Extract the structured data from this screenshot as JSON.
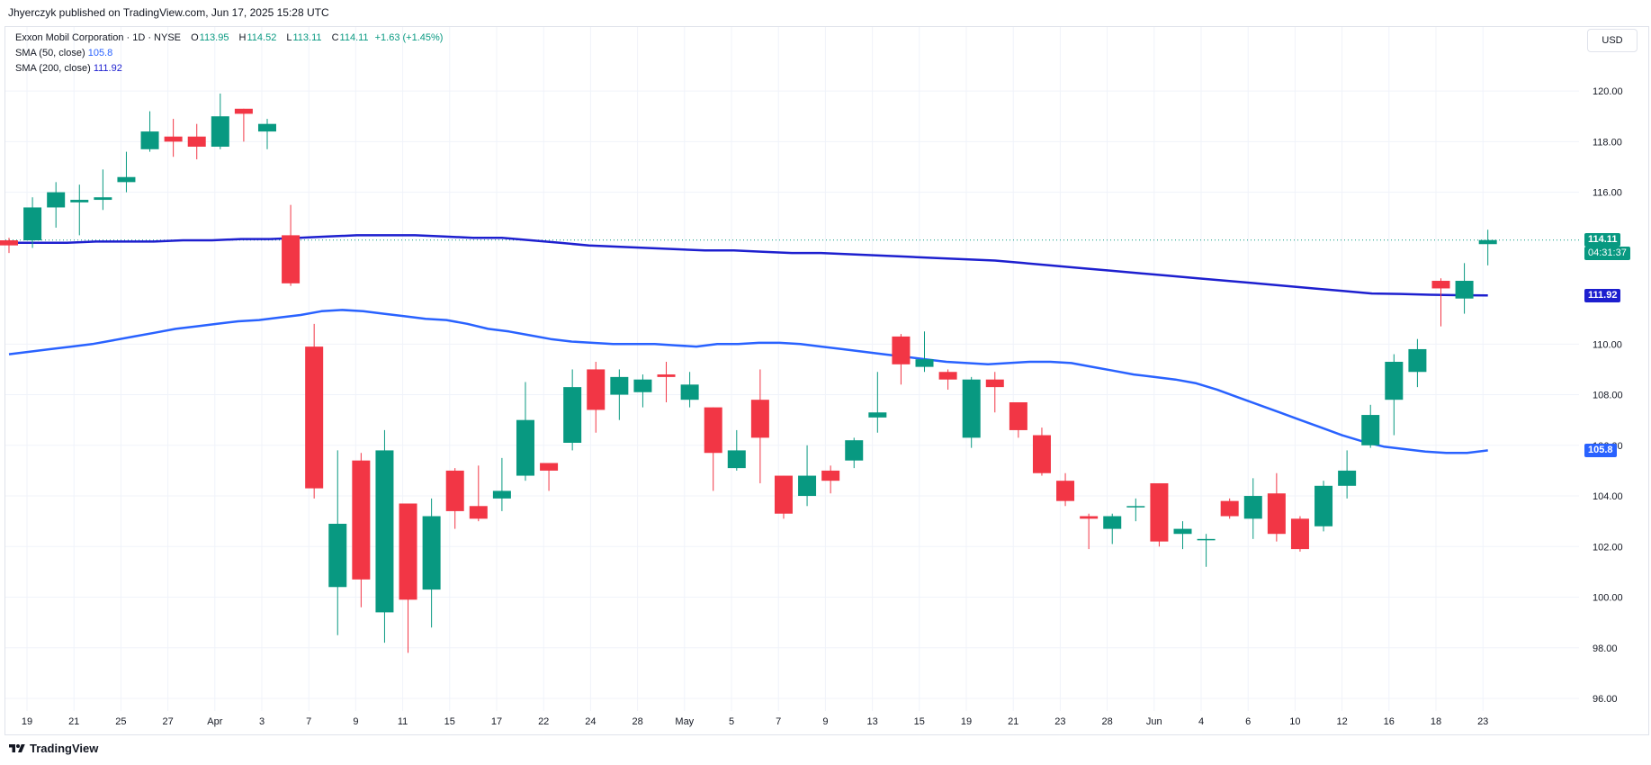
{
  "header": {
    "published": "Jhyerczyk published on TradingView.com, Jun 17, 2025 15:28 UTC"
  },
  "legend": {
    "symbol": "Exxon Mobil Corporation · 1D · NYSE",
    "open_key": "O",
    "open": "113.95",
    "high_key": "H",
    "high": "114.52",
    "low_key": "L",
    "low": "113.11",
    "close_key": "C",
    "close": "114.11",
    "change": "+1.63 (+1.45%)",
    "sma50_label": "SMA (50, close)",
    "sma50_value": "105.8",
    "sma200_label": "SMA (200, close)",
    "sma200_value": "111.92"
  },
  "currency": "USD",
  "price_labels": {
    "last_price": "114.11",
    "countdown": "04:31:37",
    "sma200": "111.92",
    "sma50": "105.8"
  },
  "footer": {
    "brand": "TradingView"
  },
  "colors": {
    "up": "#089981",
    "down": "#f23645",
    "sma50": "#2962ff",
    "sma200": "#1d1fcf",
    "grid": "#f0f3fa",
    "text": "#131722"
  },
  "chart_data": {
    "type": "candlestick",
    "title": "Exxon Mobil Corporation · 1D · NYSE",
    "ylim": [
      95.5,
      122.5
    ],
    "y_ticks": [
      "96.00",
      "98.00",
      "100.00",
      "102.00",
      "104.00",
      "106.00",
      "108.00",
      "110.00",
      "116.00",
      "118.00",
      "120.00"
    ],
    "x_ticks": [
      "19",
      "21",
      "25",
      "27",
      "Apr",
      "3",
      "7",
      "9",
      "11",
      "15",
      "17",
      "22",
      "24",
      "28",
      "May",
      "5",
      "7",
      "9",
      "13",
      "15",
      "19",
      "21",
      "23",
      "28",
      "Jun",
      "4",
      "6",
      "10",
      "12",
      "16",
      "18",
      "23"
    ],
    "grid": true,
    "candles": [
      {
        "date": "Mar 18",
        "o": 114.1,
        "h": 114.2,
        "l": 113.6,
        "c": 113.9
      },
      {
        "date": "Mar 19",
        "o": 114.1,
        "h": 115.8,
        "l": 113.8,
        "c": 115.4
      },
      {
        "date": "Mar 20",
        "o": 115.4,
        "h": 116.4,
        "l": 114.6,
        "c": 116.0
      },
      {
        "date": "Mar 21",
        "o": 115.6,
        "h": 116.3,
        "l": 114.3,
        "c": 115.7
      },
      {
        "date": "Mar 24",
        "o": 115.7,
        "h": 116.9,
        "l": 115.3,
        "c": 115.8
      },
      {
        "date": "Mar 25",
        "o": 116.4,
        "h": 117.6,
        "l": 116.0,
        "c": 116.6
      },
      {
        "date": "Mar 26",
        "o": 117.7,
        "h": 119.2,
        "l": 117.6,
        "c": 118.4
      },
      {
        "date": "Mar 27",
        "o": 118.2,
        "h": 118.9,
        "l": 117.4,
        "c": 118.0
      },
      {
        "date": "Mar 28",
        "o": 118.2,
        "h": 118.7,
        "l": 117.3,
        "c": 117.8
      },
      {
        "date": "Mar 31",
        "o": 117.8,
        "h": 119.9,
        "l": 117.7,
        "c": 119.0
      },
      {
        "date": "Apr 1",
        "o": 119.3,
        "h": 119.3,
        "l": 118.0,
        "c": 119.1
      },
      {
        "date": "Apr 2",
        "o": 118.4,
        "h": 118.9,
        "l": 117.7,
        "c": 118.7
      },
      {
        "date": "Apr 3",
        "o": 114.3,
        "h": 115.5,
        "l": 112.3,
        "c": 112.4
      },
      {
        "date": "Apr 4",
        "o": 109.9,
        "h": 110.8,
        "l": 103.9,
        "c": 104.3
      },
      {
        "date": "Apr 7",
        "o": 100.4,
        "h": 105.8,
        "l": 98.5,
        "c": 102.9
      },
      {
        "date": "Apr 8",
        "o": 105.4,
        "h": 105.7,
        "l": 99.6,
        "c": 100.7
      },
      {
        "date": "Apr 9",
        "o": 99.4,
        "h": 106.6,
        "l": 98.2,
        "c": 105.8
      },
      {
        "date": "Apr 10",
        "o": 103.7,
        "h": 103.7,
        "l": 97.8,
        "c": 99.9
      },
      {
        "date": "Apr 11",
        "o": 100.3,
        "h": 103.9,
        "l": 98.8,
        "c": 103.2
      },
      {
        "date": "Apr 14",
        "o": 105.0,
        "h": 105.1,
        "l": 102.7,
        "c": 103.4
      },
      {
        "date": "Apr 15",
        "o": 103.6,
        "h": 105.2,
        "l": 103.0,
        "c": 103.1
      },
      {
        "date": "Apr 16",
        "o": 103.9,
        "h": 105.5,
        "l": 103.4,
        "c": 104.2
      },
      {
        "date": "Apr 17",
        "o": 104.8,
        "h": 108.5,
        "l": 104.6,
        "c": 107.0
      },
      {
        "date": "Apr 21",
        "o": 105.3,
        "h": 105.3,
        "l": 104.2,
        "c": 105.0
      },
      {
        "date": "Apr 22",
        "o": 106.1,
        "h": 109.0,
        "l": 105.8,
        "c": 108.3
      },
      {
        "date": "Apr 23",
        "o": 109.0,
        "h": 109.3,
        "l": 106.5,
        "c": 107.4
      },
      {
        "date": "Apr 24",
        "o": 108.0,
        "h": 109.0,
        "l": 107.0,
        "c": 108.7
      },
      {
        "date": "Apr 25",
        "o": 108.1,
        "h": 108.8,
        "l": 107.5,
        "c": 108.6
      },
      {
        "date": "Apr 28",
        "o": 108.8,
        "h": 109.3,
        "l": 107.7,
        "c": 108.7
      },
      {
        "date": "Apr 29",
        "o": 107.8,
        "h": 108.9,
        "l": 107.5,
        "c": 108.4
      },
      {
        "date": "Apr 30",
        "o": 107.5,
        "h": 107.5,
        "l": 104.2,
        "c": 105.7
      },
      {
        "date": "May 1",
        "o": 105.1,
        "h": 106.6,
        "l": 105.0,
        "c": 105.8
      },
      {
        "date": "May 2",
        "o": 107.8,
        "h": 109.0,
        "l": 104.5,
        "c": 106.3
      },
      {
        "date": "May 5",
        "o": 104.8,
        "h": 104.8,
        "l": 103.1,
        "c": 103.3
      },
      {
        "date": "May 6",
        "o": 104.0,
        "h": 106.0,
        "l": 103.6,
        "c": 104.8
      },
      {
        "date": "May 7",
        "o": 105.0,
        "h": 105.2,
        "l": 104.1,
        "c": 104.6
      },
      {
        "date": "May 8",
        "o": 105.4,
        "h": 106.3,
        "l": 105.1,
        "c": 106.2
      },
      {
        "date": "May 9",
        "o": 107.1,
        "h": 108.9,
        "l": 106.5,
        "c": 107.3
      },
      {
        "date": "May 12",
        "o": 110.3,
        "h": 110.4,
        "l": 108.4,
        "c": 109.2
      },
      {
        "date": "May 13",
        "o": 109.1,
        "h": 110.5,
        "l": 108.9,
        "c": 109.4
      },
      {
        "date": "May 14",
        "o": 108.9,
        "h": 109.0,
        "l": 108.2,
        "c": 108.6
      },
      {
        "date": "May 15",
        "o": 106.3,
        "h": 108.7,
        "l": 105.9,
        "c": 108.6
      },
      {
        "date": "May 16",
        "o": 108.6,
        "h": 108.9,
        "l": 107.3,
        "c": 108.3
      },
      {
        "date": "May 19",
        "o": 107.7,
        "h": 107.7,
        "l": 106.3,
        "c": 106.6
      },
      {
        "date": "May 20",
        "o": 106.4,
        "h": 106.7,
        "l": 104.8,
        "c": 104.9
      },
      {
        "date": "May 21",
        "o": 104.6,
        "h": 104.9,
        "l": 103.6,
        "c": 103.8
      },
      {
        "date": "May 22",
        "o": 103.2,
        "h": 103.3,
        "l": 101.9,
        "c": 103.1
      },
      {
        "date": "May 23",
        "o": 102.7,
        "h": 103.3,
        "l": 102.1,
        "c": 103.2
      },
      {
        "date": "May 27",
        "o": 103.6,
        "h": 103.9,
        "l": 103.0,
        "c": 103.6
      },
      {
        "date": "May 28",
        "o": 104.5,
        "h": 104.5,
        "l": 102.0,
        "c": 102.2
      },
      {
        "date": "May 29",
        "o": 102.5,
        "h": 103.0,
        "l": 101.9,
        "c": 102.7
      },
      {
        "date": "May 30",
        "o": 102.3,
        "h": 102.5,
        "l": 101.2,
        "c": 102.3
      },
      {
        "date": "Jun 2",
        "o": 103.8,
        "h": 103.9,
        "l": 103.1,
        "c": 103.2
      },
      {
        "date": "Jun 3",
        "o": 103.1,
        "h": 104.7,
        "l": 102.3,
        "c": 104.0
      },
      {
        "date": "Jun 4",
        "o": 104.1,
        "h": 104.9,
        "l": 102.2,
        "c": 102.5
      },
      {
        "date": "Jun 5",
        "o": 103.1,
        "h": 103.2,
        "l": 101.8,
        "c": 101.9
      },
      {
        "date": "Jun 6",
        "o": 102.8,
        "h": 104.6,
        "l": 102.6,
        "c": 104.4
      },
      {
        "date": "Jun 9",
        "o": 104.4,
        "h": 105.8,
        "l": 103.9,
        "c": 105.0
      },
      {
        "date": "Jun 10",
        "o": 106.0,
        "h": 107.6,
        "l": 105.9,
        "c": 107.2
      },
      {
        "date": "Jun 11",
        "o": 107.8,
        "h": 109.6,
        "l": 106.4,
        "c": 109.3
      },
      {
        "date": "Jun 12",
        "o": 108.9,
        "h": 110.2,
        "l": 108.3,
        "c": 109.8
      },
      {
        "date": "Jun 13",
        "o": 112.5,
        "h": 112.6,
        "l": 110.7,
        "c": 112.2
      },
      {
        "date": "Jun 16",
        "o": 111.8,
        "h": 113.2,
        "l": 111.2,
        "c": 112.5
      },
      {
        "date": "Jun 17",
        "o": 113.95,
        "h": 114.52,
        "l": 113.11,
        "c": 114.11
      }
    ],
    "series": [
      {
        "name": "SMA (50, close)",
        "values": [
          109.6,
          109.7,
          109.8,
          109.9,
          110.0,
          110.15,
          110.3,
          110.45,
          110.6,
          110.7,
          110.8,
          110.9,
          110.95,
          111.05,
          111.15,
          111.3,
          111.35,
          111.3,
          111.2,
          111.1,
          111.0,
          110.95,
          110.8,
          110.6,
          110.5,
          110.35,
          110.2,
          110.1,
          110.05,
          110.0,
          110.0,
          110.0,
          109.95,
          109.9,
          110.0,
          110.0,
          110.05,
          110.05,
          110.0,
          109.9,
          109.8,
          109.7,
          109.6,
          109.5,
          109.4,
          109.3,
          109.25,
          109.2,
          109.25,
          109.3,
          109.3,
          109.25,
          109.1,
          108.95,
          108.8,
          108.7,
          108.6,
          108.45,
          108.2,
          107.9,
          107.6,
          107.3,
          107.0,
          106.7,
          106.4,
          106.15,
          105.95,
          105.85,
          105.75,
          105.7,
          105.7,
          105.8
        ]
      },
      {
        "name": "SMA (200, close)",
        "values": [
          114.0,
          114.0,
          114.0,
          114.05,
          114.05,
          114.05,
          114.1,
          114.1,
          114.15,
          114.15,
          114.2,
          114.25,
          114.3,
          114.3,
          114.3,
          114.25,
          114.2,
          114.2,
          114.1,
          114.0,
          113.9,
          113.85,
          113.8,
          113.75,
          113.7,
          113.7,
          113.65,
          113.6,
          113.6,
          113.55,
          113.5,
          113.45,
          113.4,
          113.35,
          113.3,
          113.2,
          113.1,
          113.0,
          112.9,
          112.8,
          112.7,
          112.6,
          112.5,
          112.4,
          112.3,
          112.2,
          112.1,
          112.0,
          111.98,
          111.95,
          111.93,
          111.92
        ]
      }
    ]
  }
}
